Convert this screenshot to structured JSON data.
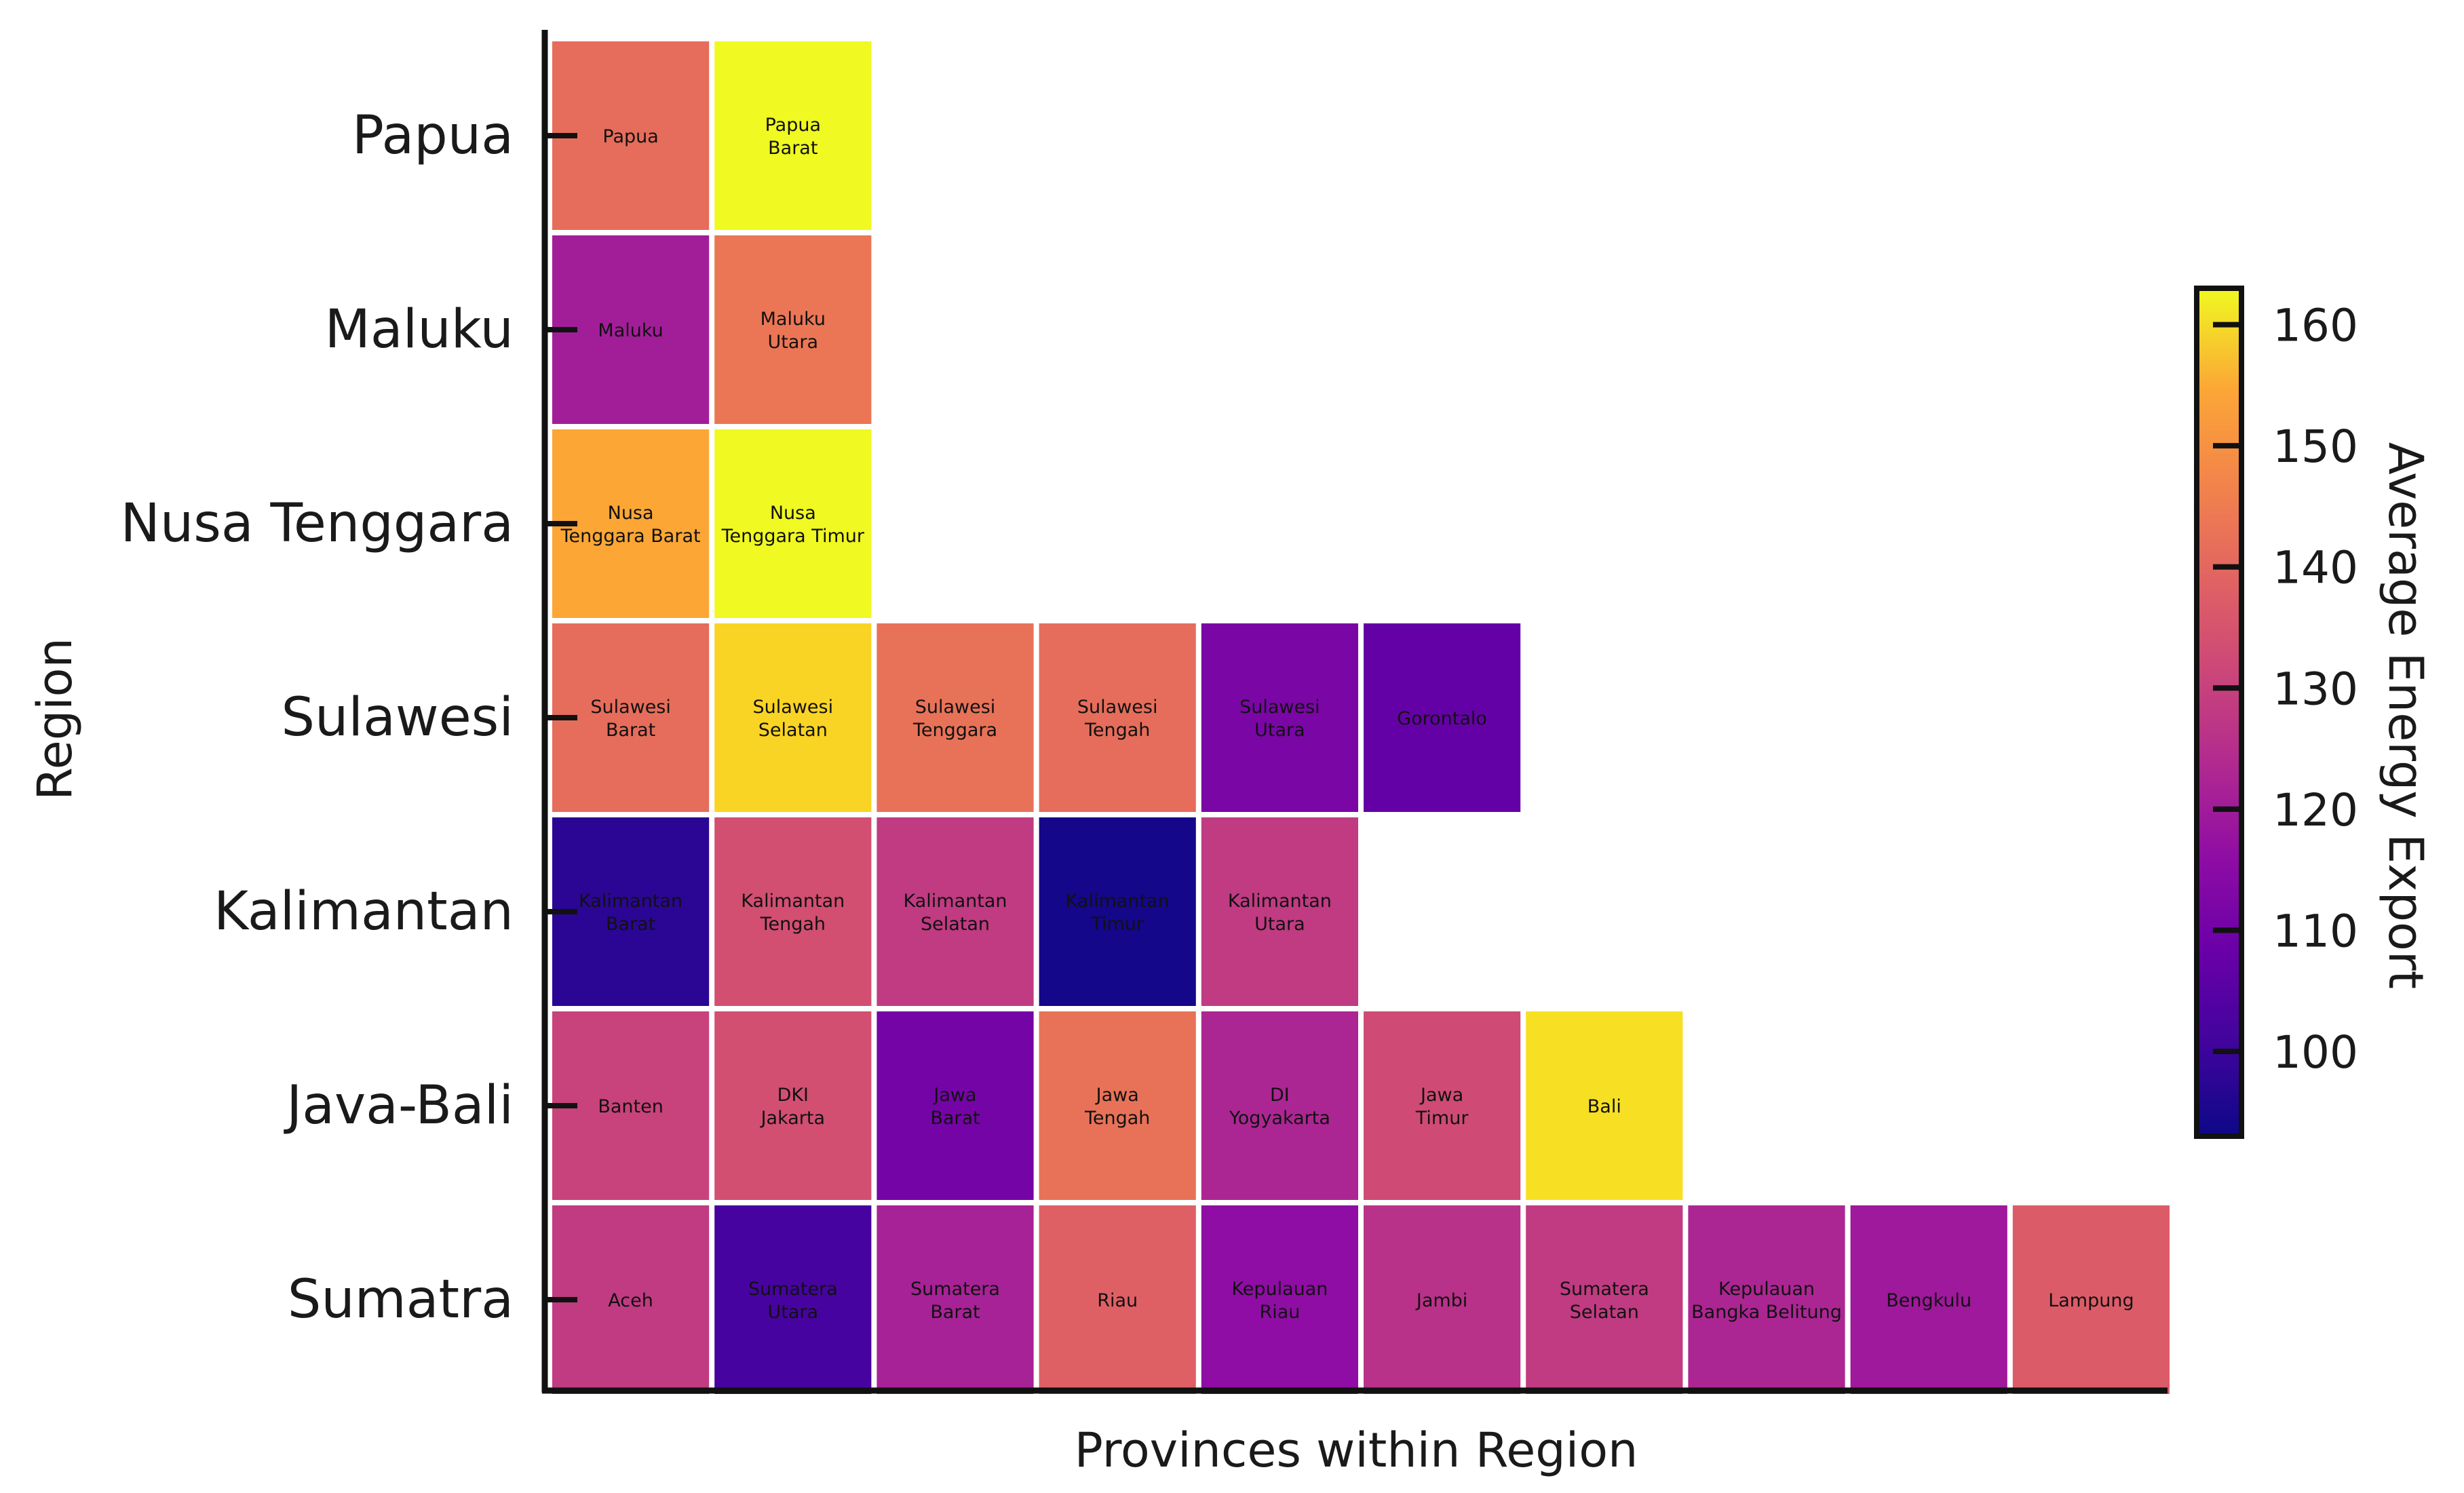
{
  "chart_data": {
    "type": "heatmap",
    "xlabel": "Provinces within Region",
    "ylabel": "Region",
    "colorbar": {
      "label": "Average Energy Export",
      "range": [
        93,
        163
      ],
      "ticks": [
        100,
        110,
        120,
        130,
        140,
        150,
        160
      ],
      "colormap": "plasma"
    },
    "regions": [
      {
        "name": "Papua",
        "provinces": [
          {
            "label": [
              "Papua"
            ],
            "value": 137
          },
          {
            "label": [
              "Papua",
              "Barat"
            ],
            "value": 163
          }
        ]
      },
      {
        "name": "Maluku",
        "provinces": [
          {
            "label": [
              "Maluku"
            ],
            "value": 118
          },
          {
            "label": [
              "Maluku",
              "Utara"
            ],
            "value": 139
          }
        ]
      },
      {
        "name": "Nusa Tenggara",
        "provinces": [
          {
            "label": [
              "Nusa",
              "Tenggara Barat"
            ],
            "value": 149
          },
          {
            "label": [
              "Nusa",
              "Tenggara Timur"
            ],
            "value": 163
          }
        ]
      },
      {
        "name": "Sulawesi",
        "provinces": [
          {
            "label": [
              "Sulawesi",
              "Barat"
            ],
            "value": 137
          },
          {
            "label": [
              "Sulawesi",
              "Selatan"
            ],
            "value": 157
          },
          {
            "label": [
              "Sulawesi",
              "Tenggara"
            ],
            "value": 138
          },
          {
            "label": [
              "Sulawesi",
              "Tengah"
            ],
            "value": 137
          },
          {
            "label": [
              "Sulawesi",
              "Utara"
            ],
            "value": 110
          },
          {
            "label": [
              "Gorontalo"
            ],
            "value": 106
          }
        ]
      },
      {
        "name": "Kalimantan",
        "provinces": [
          {
            "label": [
              "Kalimantan",
              "Barat"
            ],
            "value": 97
          },
          {
            "label": [
              "Kalimantan",
              "Tengah"
            ],
            "value": 130
          },
          {
            "label": [
              "Kalimantan",
              "Selatan"
            ],
            "value": 125
          },
          {
            "label": [
              "Kalimantan",
              "Timur"
            ],
            "value": 94
          },
          {
            "label": [
              "Kalimantan",
              "Utara"
            ],
            "value": 125
          }
        ]
      },
      {
        "name": "Java-Bali",
        "provinces": [
          {
            "label": [
              "Banten"
            ],
            "value": 127
          },
          {
            "label": [
              "DKI",
              "Jakarta"
            ],
            "value": 130
          },
          {
            "label": [
              "Jawa",
              "Barat"
            ],
            "value": 109
          },
          {
            "label": [
              "Jawa",
              "Tengah"
            ],
            "value": 138
          },
          {
            "label": [
              "DI",
              "Yogyakarta"
            ],
            "value": 120
          },
          {
            "label": [
              "Jawa",
              "Timur"
            ],
            "value": 129
          },
          {
            "label": [
              "Bali"
            ],
            "value": 159
          }
        ]
      },
      {
        "name": "Sumatra",
        "provinces": [
          {
            "label": [
              "Aceh"
            ],
            "value": 125
          },
          {
            "label": [
              "Sumatera",
              "Utara"
            ],
            "value": 101
          },
          {
            "label": [
              "Sumatera",
              "Barat"
            ],
            "value": 119
          },
          {
            "label": [
              "Riau"
            ],
            "value": 134
          },
          {
            "label": [
              "Kepulauan",
              "Riau"
            ],
            "value": 114
          },
          {
            "label": [
              "Jambi"
            ],
            "value": 123
          },
          {
            "label": [
              "Sumatera",
              "Selatan"
            ],
            "value": 125
          },
          {
            "label": [
              "Kepulauan",
              "Bangka Belitung"
            ],
            "value": 120
          },
          {
            "label": [
              "Bengkulu"
            ],
            "value": 117
          },
          {
            "label": [
              "Lampung"
            ],
            "value": 133
          }
        ]
      }
    ]
  }
}
